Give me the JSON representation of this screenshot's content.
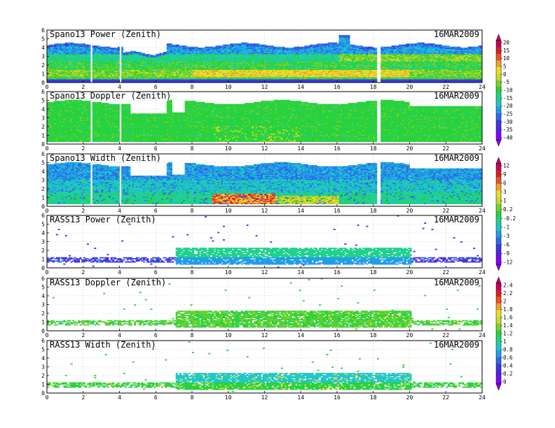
{
  "figure": {
    "date": "16MAR2009",
    "x_ticks": [
      "0",
      "2",
      "4",
      "6",
      "8",
      "10",
      "12",
      "14",
      "16",
      "18",
      "20",
      "22",
      "24"
    ],
    "y_ticks": [
      "0",
      "1",
      "2",
      "3",
      "4",
      "5",
      "6"
    ]
  },
  "chart_data": [
    {
      "type": "heatmap",
      "title": "Spano13 Power (Zenith)",
      "xlim": [
        0,
        24
      ],
      "ylim": [
        0,
        6
      ],
      "colorbar_group": 0,
      "grid": true
    },
    {
      "type": "heatmap",
      "title": "Spano13 Doppler (Zenith)",
      "xlim": [
        0,
        24
      ],
      "ylim": [
        0,
        6
      ],
      "colorbar_group": 0,
      "grid": true
    },
    {
      "type": "heatmap",
      "title": "Spano13 Width (Zenith)",
      "xlim": [
        0,
        24
      ],
      "ylim": [
        0,
        6
      ],
      "colorbar_group": 1,
      "grid": true
    },
    {
      "type": "heatmap",
      "title": "RASS13 Power (Zenith)",
      "xlim": [
        0,
        24
      ],
      "ylim": [
        0,
        6
      ],
      "colorbar_group": 1,
      "grid": true
    },
    {
      "type": "heatmap",
      "title": "RASS13 Doppler (Zenith)",
      "xlim": [
        0,
        24
      ],
      "ylim": [
        0,
        6
      ],
      "colorbar_group": 2,
      "grid": true
    },
    {
      "type": "heatmap",
      "title": "RASS13 Width (Zenith)",
      "xlim": [
        0,
        24
      ],
      "ylim": [
        0,
        6
      ],
      "colorbar_group": 2,
      "grid": true
    }
  ],
  "colorbars": [
    {
      "labels": [
        "20",
        "15",
        "10",
        "5",
        "0",
        "-5",
        "-10",
        "-15",
        "-20",
        "-25",
        "-30",
        "-35",
        "-40"
      ]
    },
    {
      "labels": [
        "12",
        "9",
        "6",
        "3",
        "1",
        "0.2",
        "-0.2",
        "-1",
        "-3",
        "-6",
        "-9",
        "-12"
      ]
    },
    {
      "labels": [
        "2.4",
        "2.2",
        "2",
        "1.8",
        "1.6",
        "1.4",
        "1.2",
        "1",
        "0.8",
        "0.6",
        "0.4",
        "0.2",
        "0"
      ]
    }
  ],
  "colormap": [
    "#8b00ff",
    "#5a1ee6",
    "#3a3adc",
    "#2a6ae8",
    "#1e9ee8",
    "#1ec8c8",
    "#1ed28c",
    "#28d23c",
    "#78d228",
    "#c8dc28",
    "#f0dc28",
    "#f0a028",
    "#f05028",
    "#dc1e1e",
    "#c8005a"
  ]
}
